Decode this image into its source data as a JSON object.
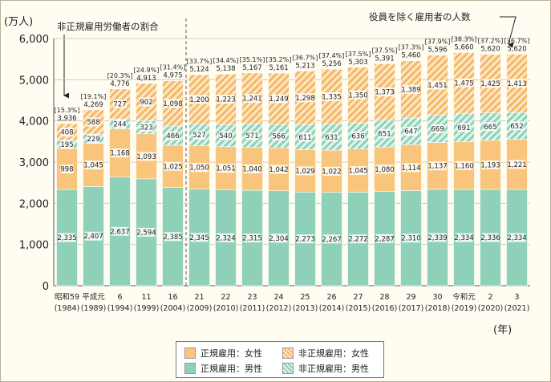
{
  "chart_data": {
    "type": "bar",
    "stacked": true,
    "unit_label": "(万人)",
    "year_unit": "(年)",
    "yticks": [
      "0",
      "1,000",
      "2,000",
      "3,000",
      "4,000",
      "5,000",
      "6,000"
    ],
    "ylim": [
      0,
      6000
    ],
    "categories": [
      {
        "era": "昭和59",
        "year": "(1984)"
      },
      {
        "era": "平成元",
        "year": "(1989)"
      },
      {
        "era": "6",
        "year": "(1994)"
      },
      {
        "era": "11",
        "year": "(1999)"
      },
      {
        "era": "16",
        "year": "(2004)"
      },
      {
        "era": "21",
        "year": "(2009)"
      },
      {
        "era": "22",
        "year": "(2010)"
      },
      {
        "era": "23",
        "year": "(2011)"
      },
      {
        "era": "24",
        "year": "(2012)"
      },
      {
        "era": "25",
        "year": "(2013)"
      },
      {
        "era": "26",
        "year": "(2014)"
      },
      {
        "era": "27",
        "year": "(2015)"
      },
      {
        "era": "28",
        "year": "(2016)"
      },
      {
        "era": "29",
        "year": "(2017)"
      },
      {
        "era": "30",
        "year": "(2018)"
      },
      {
        "era": "令和元",
        "year": "(2019)"
      },
      {
        "era": "2",
        "year": "(2020)"
      },
      {
        "era": "3",
        "year": "(2021)"
      }
    ],
    "series": [
      {
        "name": "正規雇用：男性",
        "color": "#8ed1b8",
        "pattern": "solid",
        "values": [
          2335,
          2407,
          2637,
          2594,
          2385,
          2345,
          2324,
          2315,
          2304,
          2273,
          2267,
          2272,
          2287,
          2310,
          2339,
          2334,
          2336,
          2334
        ]
      },
      {
        "name": "正規雇用：女性",
        "color": "#f9c57d",
        "pattern": "solid",
        "values": [
          998,
          1045,
          1168,
          1093,
          1025,
          1050,
          1051,
          1040,
          1042,
          1029,
          1022,
          1045,
          1080,
          1114,
          1137,
          1160,
          1193,
          1221
        ]
      },
      {
        "name": "非正規雇用：男性",
        "color": "#8ed1b8",
        "pattern": "hatch",
        "values": [
          195,
          229,
          244,
          323,
          466,
          527,
          540,
          571,
          566,
          611,
          631,
          636,
          651,
          647,
          669,
          691,
          665,
          652
        ]
      },
      {
        "name": "非正規雇用：女性",
        "color": "#f9c57d",
        "pattern": "hatch",
        "values": [
          408,
          588,
          727,
          902,
          1098,
          1200,
          1223,
          1241,
          1249,
          1298,
          1335,
          1350,
          1373,
          1389,
          1451,
          1475,
          1425,
          1413
        ]
      }
    ],
    "totals": [
      3936,
      4269,
      4776,
      4913,
      4975,
      5124,
      5138,
      5167,
      5161,
      5213,
      5256,
      5303,
      5391,
      5460,
      5596,
      5660,
      5620,
      5620
    ],
    "nonregular_ratio": [
      "[15.3%]",
      "[19.1%]",
      "[20.3%]",
      "[24.9%]",
      "[31.4%]",
      "[33.7%]",
      "[34.4%]",
      "[35.1%]",
      "[35.2%]",
      "[36.7%]",
      "[37.4%]",
      "[37.5%]",
      "[37.5%]",
      "[37.3%]",
      "[37.9%]",
      "[38.3%]",
      "[37.2%]",
      "[36.7%]"
    ],
    "annotations": {
      "ratio": "非正規雇用労働者の割合",
      "total": "役員を除く雇用者の人数"
    },
    "legend": {
      "placement": "bottom-center",
      "rows": [
        [
          "正規雇用：女性",
          "非正規雇用：女性"
        ],
        [
          "正規雇用：男性",
          "非正規雇用：男性"
        ]
      ]
    }
  }
}
